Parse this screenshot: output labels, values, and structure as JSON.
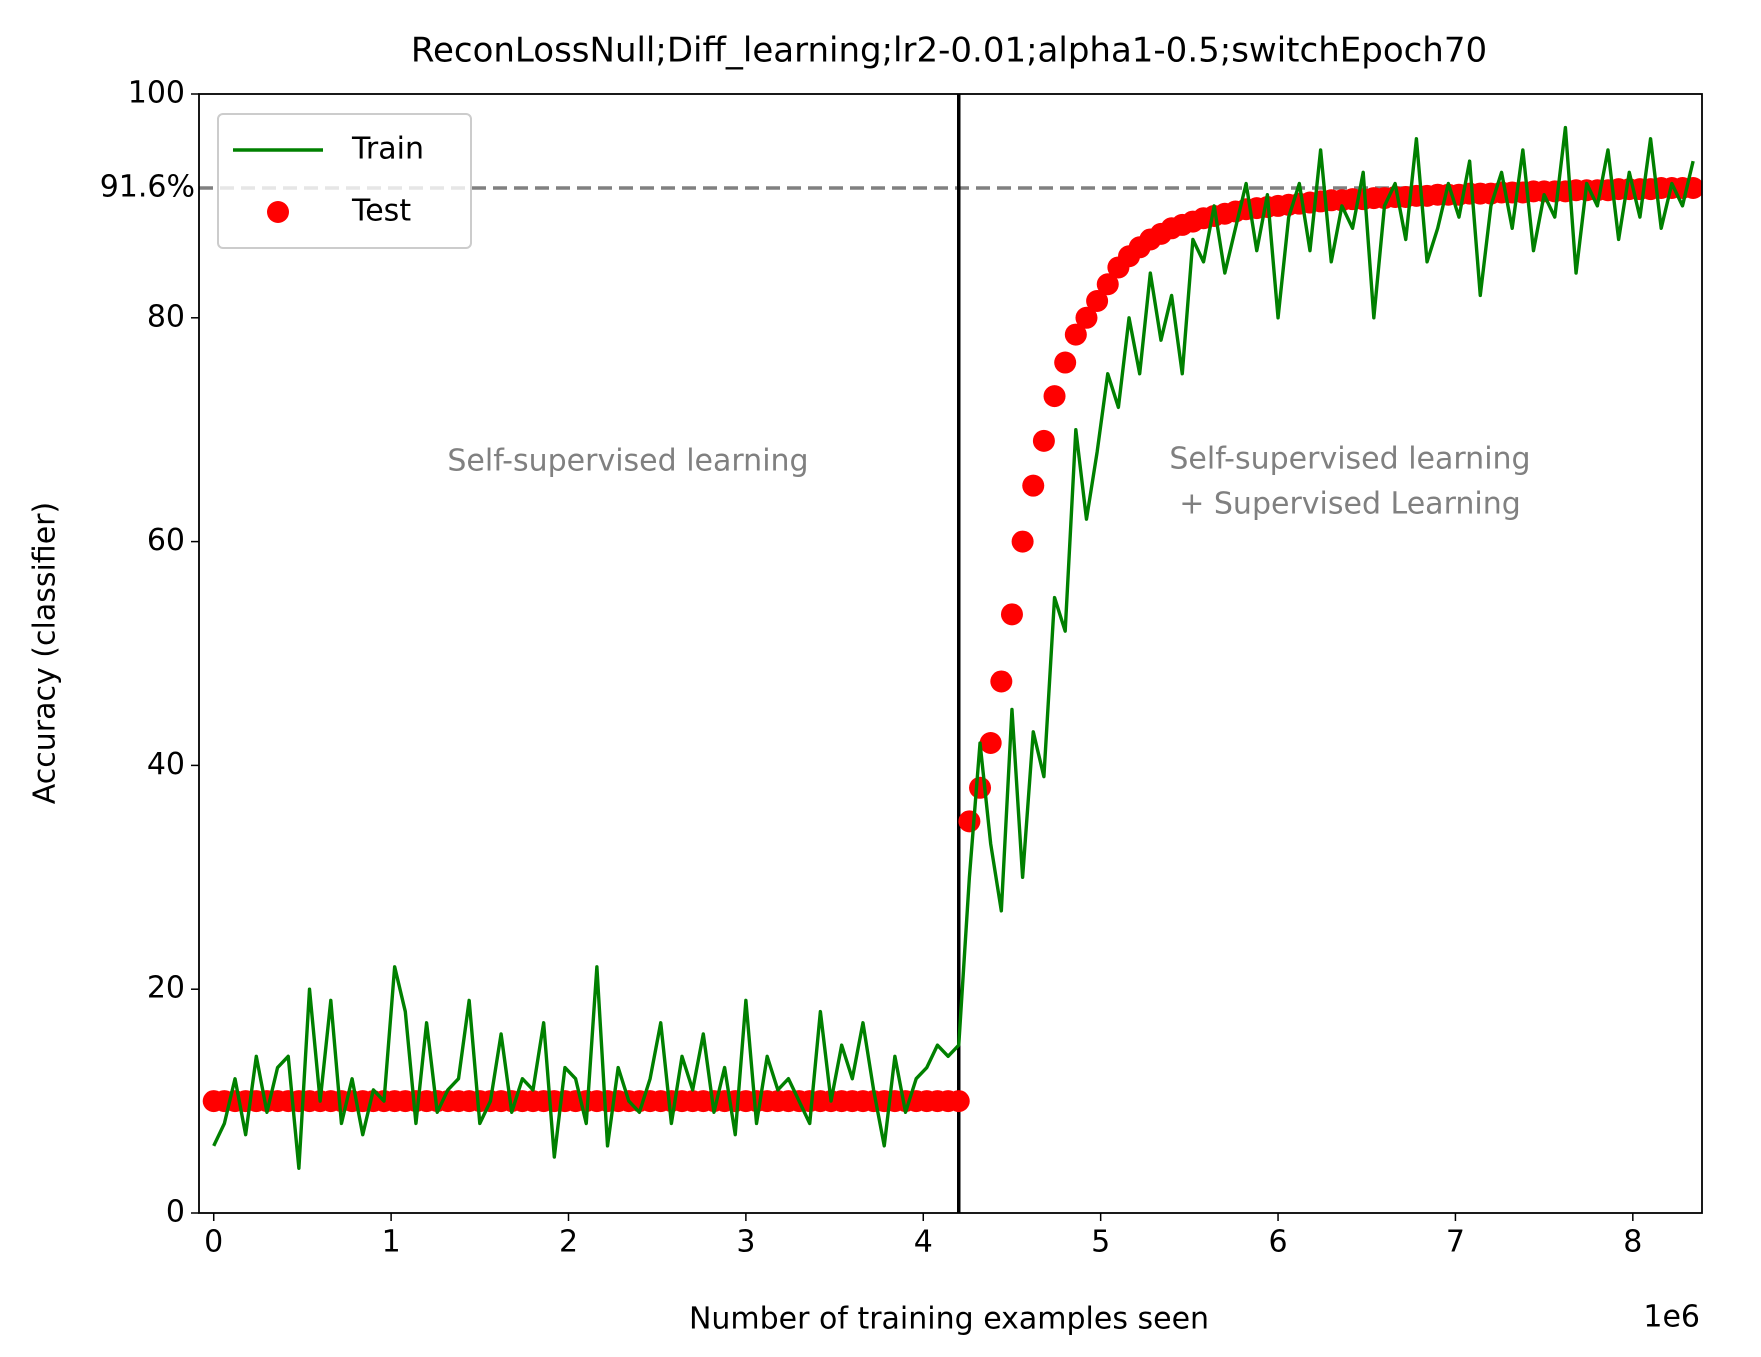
{
  "chart_data": {
    "type": "line",
    "title": "ReconLossNull;Diff_learning;lr2-0.01;alpha1-0.5;switchEpoch70",
    "x_label": "Number of training examples seen",
    "y_label": "Accuracy (classifier)",
    "x_offset_label": "1e6",
    "xlim": [
      -83000,
      8390000
    ],
    "ylim": [
      0,
      100
    ],
    "xticks": [
      {
        "value": 0,
        "label": "0"
      },
      {
        "value": 1000000,
        "label": "1"
      },
      {
        "value": 2000000,
        "label": "2"
      },
      {
        "value": 3000000,
        "label": "3"
      },
      {
        "value": 4000000,
        "label": "4"
      },
      {
        "value": 5000000,
        "label": "5"
      },
      {
        "value": 6000000,
        "label": "6"
      },
      {
        "value": 7000000,
        "label": "7"
      },
      {
        "value": 8000000,
        "label": "8"
      }
    ],
    "yticks": [
      0,
      20,
      40,
      60,
      80,
      100
    ],
    "legend": "upper left",
    "x": [
      0,
      60000,
      120000,
      180000,
      240000,
      300000,
      360000,
      420000,
      480000,
      540000,
      600000,
      660000,
      720000,
      780000,
      840000,
      900000,
      960000,
      1020000,
      1080000,
      1140000,
      1200000,
      1260000,
      1320000,
      1380000,
      1440000,
      1500000,
      1560000,
      1620000,
      1680000,
      1740000,
      1800000,
      1860000,
      1920000,
      1980000,
      2040000,
      2100000,
      2160000,
      2220000,
      2280000,
      2340000,
      2400000,
      2460000,
      2520000,
      2580000,
      2640000,
      2700000,
      2760000,
      2820000,
      2880000,
      2940000,
      3000000,
      3060000,
      3120000,
      3180000,
      3240000,
      3300000,
      3360000,
      3420000,
      3480000,
      3540000,
      3600000,
      3660000,
      3720000,
      3780000,
      3840000,
      3900000,
      3960000,
      4020000,
      4080000,
      4140000,
      4200000,
      4260000,
      4320000,
      4380000,
      4440000,
      4500000,
      4560000,
      4620000,
      4680000,
      4740000,
      4800000,
      4860000,
      4920000,
      4980000,
      5040000,
      5100000,
      5160000,
      5220000,
      5280000,
      5340000,
      5400000,
      5460000,
      5520000,
      5580000,
      5640000,
      5700000,
      5760000,
      5820000,
      5880000,
      5940000,
      6000000,
      6060000,
      6120000,
      6180000,
      6240000,
      6300000,
      6360000,
      6420000,
      6480000,
      6540000,
      6600000,
      6660000,
      6720000,
      6780000,
      6840000,
      6900000,
      6960000,
      7020000,
      7080000,
      7140000,
      7200000,
      7260000,
      7320000,
      7380000,
      7440000,
      7500000,
      7560000,
      7620000,
      7680000,
      7740000,
      7800000,
      7860000,
      7920000,
      7980000,
      8040000,
      8100000,
      8160000,
      8220000,
      8280000,
      8340000
    ],
    "series": [
      {
        "name": "Train",
        "type": "line",
        "color": "#008000",
        "values": [
          6,
          8,
          12,
          7,
          14,
          9,
          13,
          14,
          4,
          20,
          10,
          19,
          8,
          12,
          7,
          11,
          10,
          22,
          18,
          8,
          17,
          9,
          11,
          12,
          19,
          8,
          10,
          16,
          9,
          12,
          11,
          17,
          5,
          13,
          12,
          8,
          22,
          6,
          13,
          10,
          9,
          12,
          17,
          8,
          14,
          11,
          16,
          9,
          13,
          7,
          19,
          8,
          14,
          11,
          12,
          10,
          8,
          18,
          10,
          15,
          12,
          17,
          11,
          6,
          14,
          9,
          12,
          13,
          15,
          14,
          15,
          30,
          42,
          33,
          27,
          45,
          30,
          43,
          39,
          55,
          52,
          70,
          62,
          68,
          75,
          72,
          80,
          75,
          84,
          78,
          82,
          75,
          87,
          85,
          90,
          84,
          88,
          92,
          86,
          91,
          80,
          89,
          92,
          86,
          95,
          85,
          90,
          88,
          93,
          80,
          90,
          92,
          87,
          96,
          85,
          88,
          92,
          89,
          94,
          82,
          90,
          93,
          88,
          95,
          86,
          91,
          89,
          97,
          84,
          92,
          90,
          95,
          87,
          93,
          89,
          96,
          88,
          92,
          90,
          94
        ]
      },
      {
        "name": "Test",
        "type": "scatter",
        "color": "#ff0000",
        "values": [
          10,
          10,
          10,
          10,
          10,
          10,
          10,
          10,
          10,
          10,
          10,
          10,
          10,
          10,
          10,
          10,
          10,
          10,
          10,
          10,
          10,
          10,
          10,
          10,
          10,
          10,
          10,
          10,
          10,
          10,
          10,
          10,
          10,
          10,
          10,
          10,
          10,
          10,
          10,
          10,
          10,
          10,
          10,
          10,
          10,
          10,
          10,
          10,
          10,
          10,
          10,
          10,
          10,
          10,
          10,
          10,
          10,
          10,
          10,
          10,
          10,
          10,
          10,
          10,
          10,
          10,
          10,
          10,
          10,
          10,
          10,
          35,
          38,
          42,
          47.5,
          53.5,
          60,
          65,
          69,
          73,
          76,
          78.5,
          80,
          81.5,
          83,
          84.5,
          85.5,
          86.3,
          87,
          87.5,
          88,
          88.3,
          88.6,
          88.9,
          89.1,
          89.3,
          89.5,
          89.7,
          89.8,
          89.9,
          90,
          90.1,
          90.2,
          90.3,
          90.4,
          90.5,
          90.5,
          90.6,
          90.6,
          90.7,
          90.7,
          90.8,
          90.8,
          90.9,
          90.9,
          91,
          91,
          91,
          91.1,
          91.1,
          91.1,
          91.2,
          91.2,
          91.2,
          91.3,
          91.3,
          91.3,
          91.3,
          91.4,
          91.4,
          91.4,
          91.4,
          91.5,
          91.5,
          91.5,
          91.5,
          91.6,
          91.6,
          91.6,
          91.6
        ]
      }
    ],
    "hline": {
      "value": 91.6,
      "label": "91.6%",
      "color": "#808080"
    },
    "vline": {
      "value": 4200000,
      "color": "#000000"
    },
    "annotations": [
      {
        "lines": [
          "Self-supervised learning"
        ]
      },
      {
        "lines": [
          "Self-supervised learning",
          "+ Supervised Learning"
        ]
      }
    ]
  }
}
